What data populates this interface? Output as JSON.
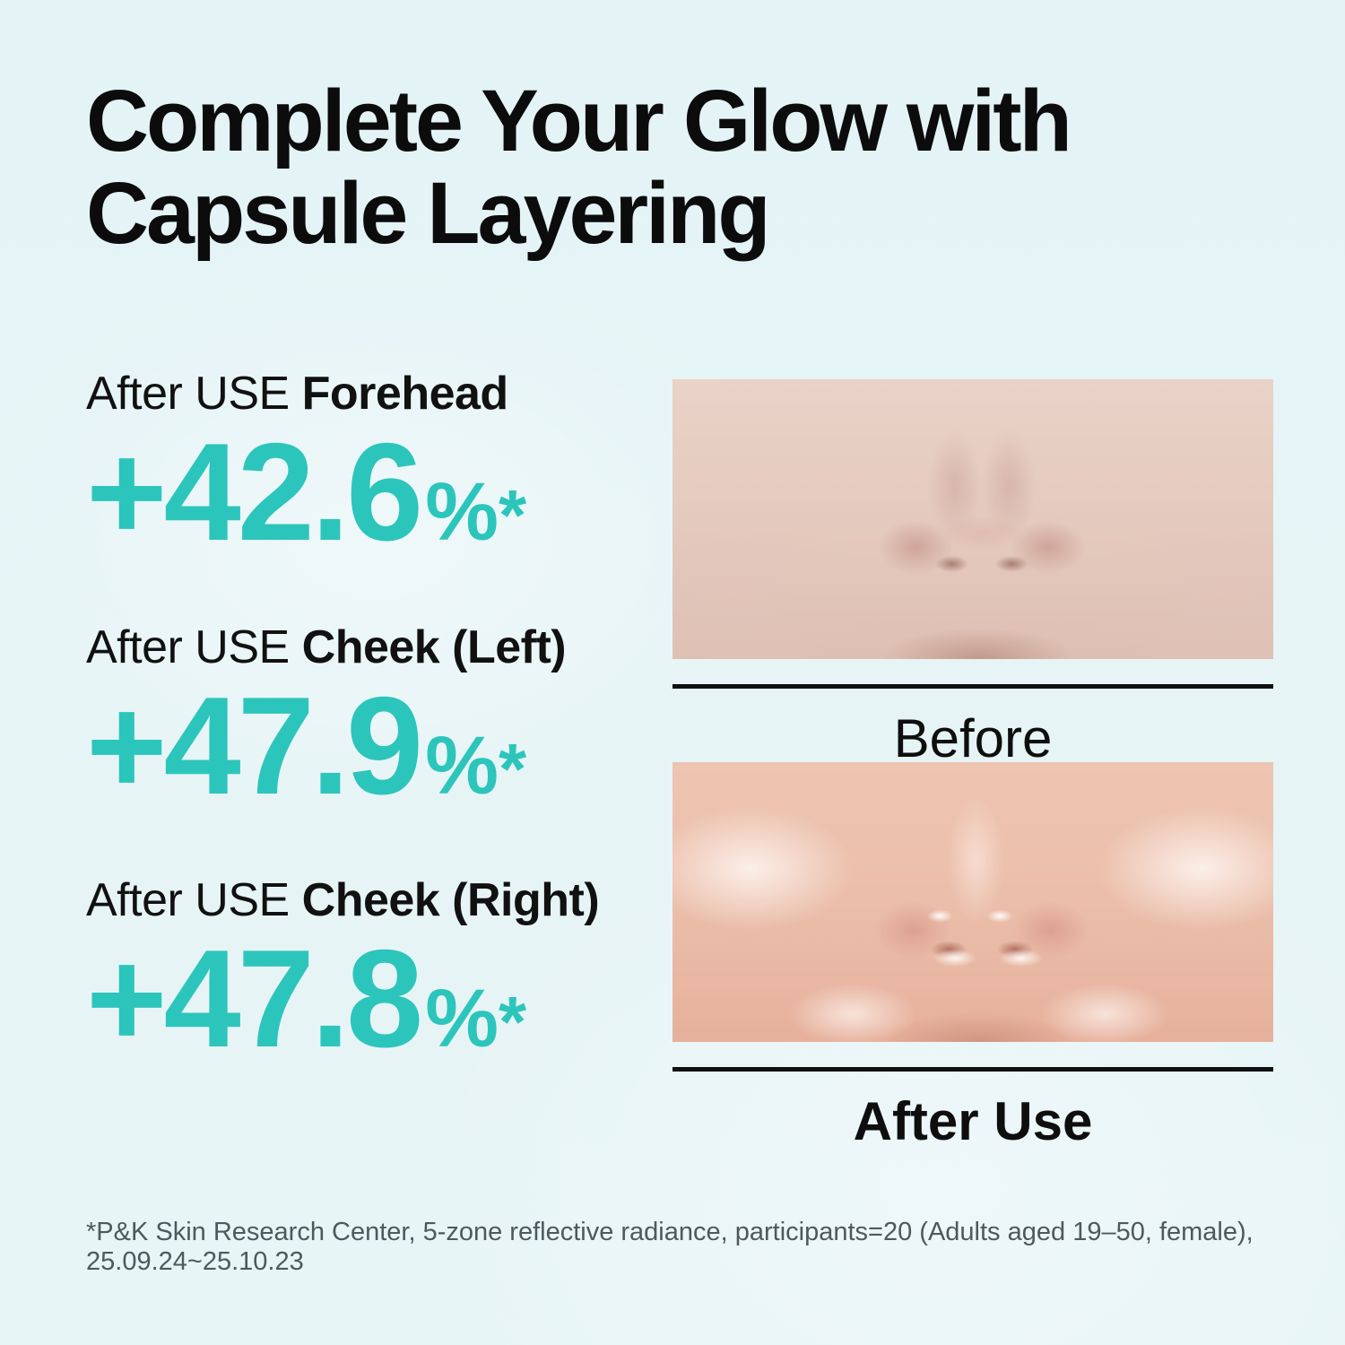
{
  "title": {
    "line1": "Complete Your Glow with",
    "line2": "Capsule Layering"
  },
  "stats": [
    {
      "label_prefix": "After USE",
      "label_bold": "Forehead",
      "value": "+42.6",
      "unit": "%",
      "marker": "*"
    },
    {
      "label_prefix": "After USE",
      "label_bold": "Cheek (Left)",
      "value": "+47.9",
      "unit": "%",
      "marker": "*"
    },
    {
      "label_prefix": "After USE",
      "label_bold": "Cheek (Right)",
      "value": "+47.8",
      "unit": "%",
      "marker": "*"
    }
  ],
  "comparison": {
    "before_label": "Before",
    "after_label": "After Use"
  },
  "footnote": {
    "line1": "*P&K Skin Research Center, 5-zone reflective radiance, participants=20 (Adults aged 19–50, female),",
    "line2": "25.09.24~25.10.23"
  },
  "colors": {
    "accent_teal": "#2cc5bc",
    "background": "#e6f4f6",
    "title_text": "#0c0c0c",
    "footnote_text": "#4e595c",
    "divider": "#101010"
  }
}
